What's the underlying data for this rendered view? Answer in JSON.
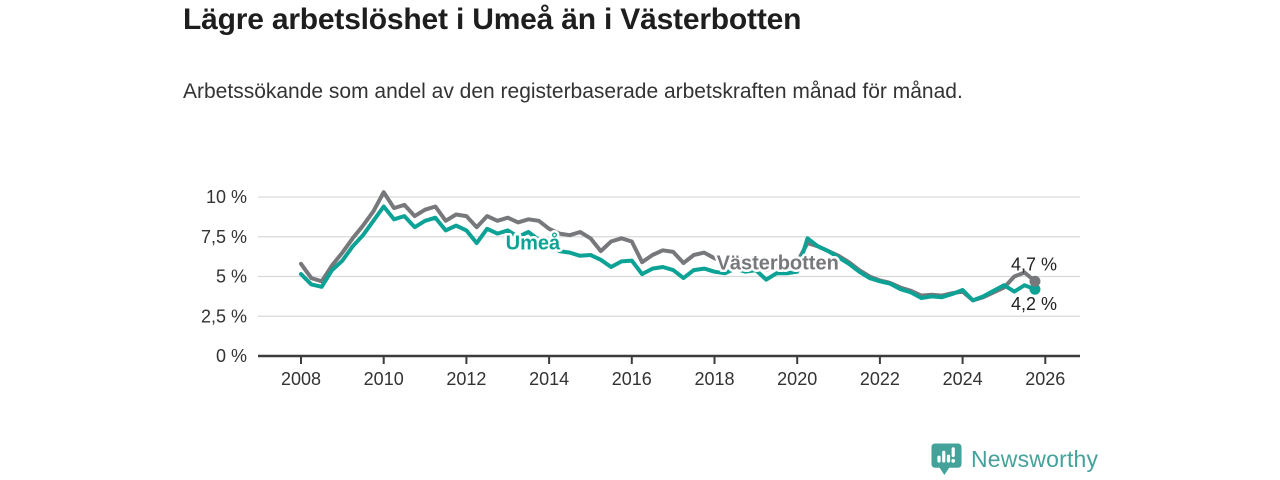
{
  "header": {
    "title": "Lägre arbetslöshet i Umeå än i Västerbotten",
    "subtitle": "Arbetssökande som andel av den registerbaserade arbetskraften månad för månad."
  },
  "footer": {
    "brand": "Newsworthy",
    "logo_icon": "bar-chart-speech-bubble-icon",
    "brand_color": "#45a29b"
  },
  "chart_data": {
    "type": "line",
    "title": "Lägre arbetslöshet i Umeå än i Västerbotten",
    "xlabel": "",
    "ylabel": "",
    "grid": "horizontal",
    "legend_position": "inline-annotations",
    "xlim": [
      2007.9,
      2026.8
    ],
    "ylim": [
      0,
      10.5
    ],
    "x_ticks": [
      2008,
      2010,
      2012,
      2014,
      2016,
      2018,
      2020,
      2022,
      2024,
      2026
    ],
    "y_ticks": [
      {
        "value": 0,
        "label": "0 %"
      },
      {
        "value": 2.5,
        "label": "2,5 %"
      },
      {
        "value": 5,
        "label": "5 %"
      },
      {
        "value": 7.5,
        "label": "7,5 %"
      },
      {
        "value": 10,
        "label": "10 %"
      }
    ],
    "x": [
      2008.0,
      2008.25,
      2008.5,
      2008.75,
      2009.0,
      2009.25,
      2009.5,
      2009.75,
      2010.0,
      2010.25,
      2010.5,
      2010.75,
      2011.0,
      2011.25,
      2011.5,
      2011.75,
      2012.0,
      2012.25,
      2012.5,
      2012.75,
      2013.0,
      2013.25,
      2013.5,
      2013.75,
      2014.0,
      2014.25,
      2014.5,
      2014.75,
      2015.0,
      2015.25,
      2015.5,
      2015.75,
      2016.0,
      2016.25,
      2016.5,
      2016.75,
      2017.0,
      2017.25,
      2017.5,
      2017.75,
      2018.0,
      2018.25,
      2018.5,
      2018.75,
      2019.0,
      2019.25,
      2019.5,
      2019.75,
      2020.0,
      2020.25,
      2020.5,
      2020.75,
      2021.0,
      2021.25,
      2021.5,
      2021.75,
      2022.0,
      2022.25,
      2022.5,
      2022.75,
      2023.0,
      2023.25,
      2023.5,
      2023.75,
      2024.0,
      2024.25,
      2024.5,
      2024.75,
      2025.0,
      2025.25,
      2025.5,
      2025.75
    ],
    "series": [
      {
        "id": "vasterbotten",
        "name": "Västerbotten",
        "color": "#77787b",
        "annotation": {
          "text": "Västerbotten",
          "x": 2018.05,
          "y": 5.45
        },
        "end_label": {
          "text": "4,7 %",
          "position": "above"
        },
        "values": [
          5.8,
          4.9,
          4.7,
          5.7,
          6.5,
          7.4,
          8.2,
          9.1,
          10.3,
          9.3,
          9.5,
          8.8,
          9.2,
          9.4,
          8.5,
          8.9,
          8.8,
          8.1,
          8.8,
          8.5,
          8.7,
          8.4,
          8.6,
          8.5,
          8.0,
          7.7,
          7.6,
          7.8,
          7.4,
          6.6,
          7.2,
          7.4,
          7.2,
          5.9,
          6.35,
          6.65,
          6.55,
          5.85,
          6.35,
          6.5,
          6.15,
          5.9,
          6.2,
          6.0,
          5.9,
          5.4,
          5.7,
          5.8,
          5.9,
          7.1,
          6.9,
          6.6,
          6.3,
          5.9,
          5.4,
          5.0,
          4.75,
          4.6,
          4.3,
          4.1,
          3.8,
          3.85,
          3.8,
          3.95,
          4.05,
          3.5,
          3.7,
          4.0,
          4.3,
          5.0,
          5.25,
          4.7
        ]
      },
      {
        "id": "umea",
        "name": "Umeå",
        "color": "#0ca295",
        "annotation": {
          "text": "Umeå",
          "x": 2012.95,
          "y": 6.7
        },
        "end_label": {
          "text": "4,2 %",
          "position": "below"
        },
        "values": [
          5.15,
          4.5,
          4.35,
          5.4,
          6.0,
          6.9,
          7.6,
          8.5,
          9.4,
          8.6,
          8.8,
          8.1,
          8.5,
          8.7,
          7.9,
          8.2,
          7.9,
          7.1,
          8.0,
          7.7,
          7.9,
          7.5,
          7.8,
          7.3,
          7.0,
          6.6,
          6.5,
          6.3,
          6.35,
          6.05,
          5.6,
          5.95,
          6.0,
          5.15,
          5.5,
          5.6,
          5.4,
          4.9,
          5.4,
          5.5,
          5.3,
          5.2,
          5.5,
          5.3,
          5.4,
          4.8,
          5.2,
          5.2,
          5.3,
          7.4,
          6.9,
          6.6,
          6.2,
          5.8,
          5.3,
          4.9,
          4.7,
          4.55,
          4.2,
          4.0,
          3.65,
          3.75,
          3.7,
          3.9,
          4.15,
          3.5,
          3.75,
          4.1,
          4.45,
          4.05,
          4.45,
          4.2
        ]
      }
    ],
    "style": {
      "grid_color": "#d9d9d9",
      "axis_color": "#3c3c3c",
      "axis_text_color": "#333333",
      "line_width": 4
    }
  }
}
